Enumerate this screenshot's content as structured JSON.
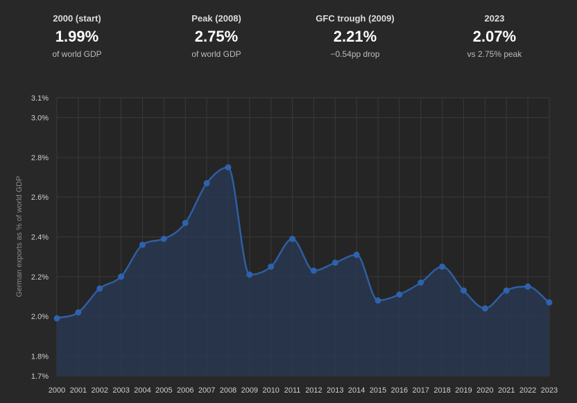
{
  "stats": [
    {
      "label": "2000 (start)",
      "value": "1.99%",
      "sub": "of world GDP"
    },
    {
      "label": "Peak (2008)",
      "value": "2.75%",
      "sub": "of world GDP"
    },
    {
      "label": "GFC trough (2009)",
      "value": "2.21%",
      "sub": "−0.54pp drop"
    },
    {
      "label": "2023",
      "value": "2.07%",
      "sub": "vs 2.75% peak"
    }
  ],
  "chart_data": {
    "type": "area",
    "title": "",
    "xlabel": "",
    "ylabel": "German exports as % of world GDP",
    "ylim": [
      1.7,
      3.1
    ],
    "yticks": [
      1.7,
      1.8,
      2.0,
      2.2,
      2.4,
      2.6,
      2.8,
      3.0,
      3.1
    ],
    "ytick_labels": [
      "1.7%",
      "1.8%",
      "2.0%",
      "2.2%",
      "2.4%",
      "2.6%",
      "2.8%",
      "3.0%",
      "3.1%"
    ],
    "categories": [
      "2000",
      "2001",
      "2002",
      "2003",
      "2004",
      "2005",
      "2006",
      "2007",
      "2008",
      "2009",
      "2010",
      "2011",
      "2012",
      "2013",
      "2014",
      "2015",
      "2016",
      "2017",
      "2018",
      "2019",
      "2020",
      "2021",
      "2022",
      "2023"
    ],
    "series": [
      {
        "name": "German exports",
        "values": [
          1.99,
          2.02,
          2.14,
          2.2,
          2.36,
          2.39,
          2.47,
          2.67,
          2.75,
          2.21,
          2.25,
          2.39,
          2.23,
          2.27,
          2.31,
          2.08,
          2.11,
          2.17,
          2.25,
          2.13,
          2.04,
          2.13,
          2.15,
          2.07
        ]
      }
    ],
    "colors": {
      "line": "#2e5fa3",
      "marker": "#2e62ad",
      "fill": "#2a3a55",
      "grid": "#3a3a3a"
    },
    "grid": true
  }
}
